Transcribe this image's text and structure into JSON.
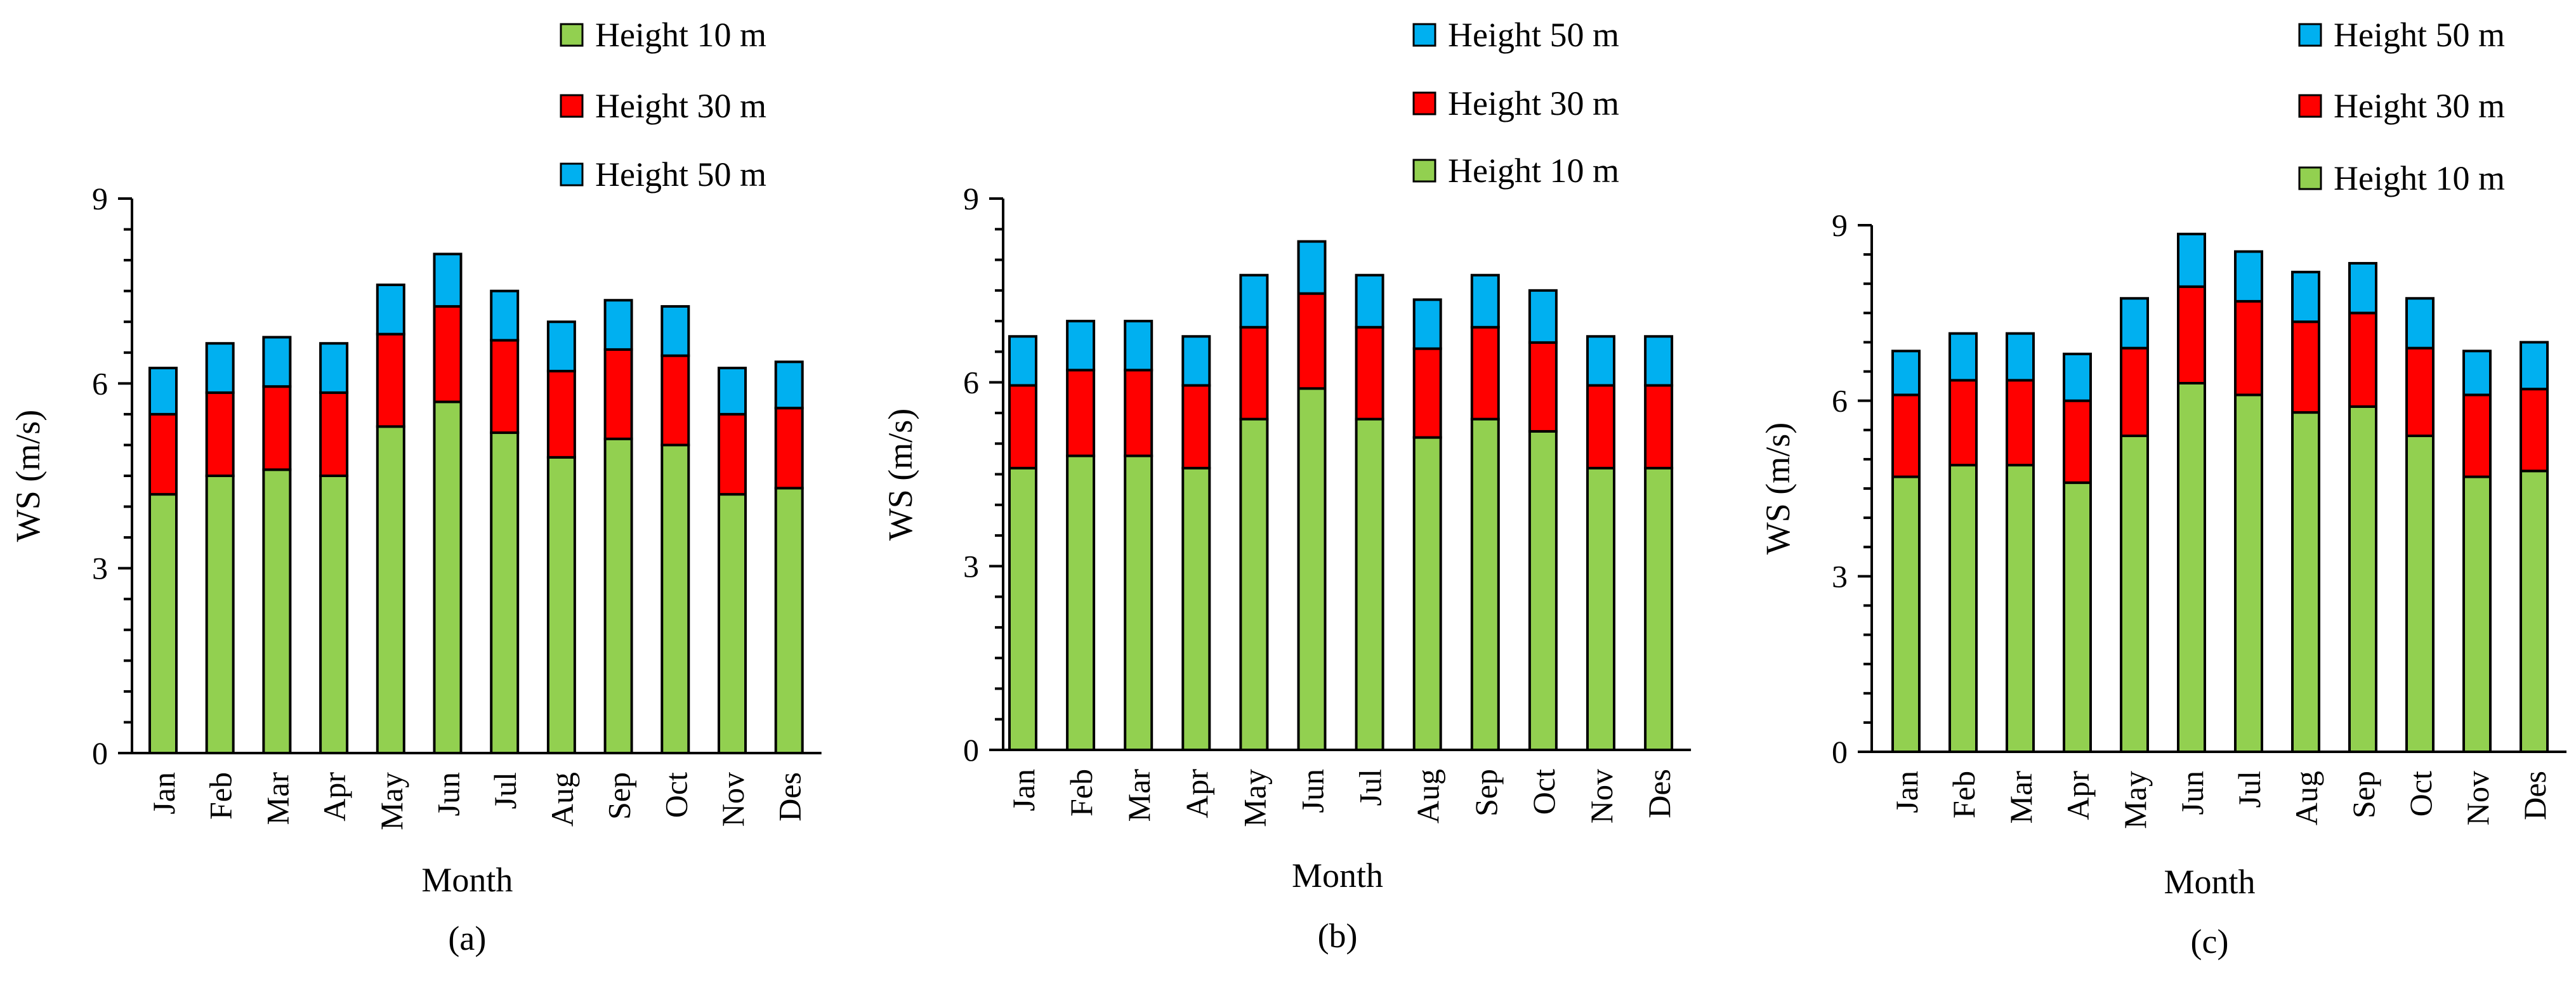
{
  "figure": {
    "legend_series_label": "Height",
    "unit": "m"
  },
  "chart_data": [
    {
      "type": "bar",
      "stacked": true,
      "panel_label": "(a)",
      "xlabel": "Month",
      "ylabel": "WS (m/s)",
      "ylim": [
        0,
        9
      ],
      "yticks": [
        0,
        3,
        6,
        9
      ],
      "categories": [
        "Jan",
        "Feb",
        "Mar",
        "Apr",
        "May",
        "Jun",
        "Jul",
        "Aug",
        "Sep",
        "Oct",
        "Nov",
        "Des"
      ],
      "series": [
        {
          "name": "Height 10 m",
          "color": "#92D050",
          "values": [
            4.2,
            4.5,
            4.6,
            4.5,
            5.3,
            5.7,
            5.2,
            4.8,
            5.1,
            5.0,
            4.2,
            4.3
          ]
        },
        {
          "name": "Height 30 m",
          "color": "#FF0000",
          "values": [
            1.3,
            1.35,
            1.35,
            1.35,
            1.5,
            1.55,
            1.5,
            1.4,
            1.45,
            1.45,
            1.3,
            1.3
          ]
        },
        {
          "name": "Height 50 m",
          "color": "#00B0F0",
          "values": [
            0.75,
            0.8,
            0.8,
            0.8,
            0.8,
            0.85,
            0.8,
            0.8,
            0.8,
            0.8,
            0.75,
            0.75
          ]
        }
      ],
      "legend_order": [
        "Height 10 m",
        "Height 30 m",
        "Height 50 m"
      ],
      "legend_position": "top-right"
    },
    {
      "type": "bar",
      "stacked": true,
      "panel_label": "(b)",
      "xlabel": "Month",
      "ylabel": "WS (m/s)",
      "ylim": [
        0,
        9
      ],
      "yticks": [
        0,
        3,
        6,
        9
      ],
      "categories": [
        "Jan",
        "Feb",
        "Mar",
        "Apr",
        "May",
        "Jun",
        "Jul",
        "Aug",
        "Sep",
        "Oct",
        "Nov",
        "Des"
      ],
      "series": [
        {
          "name": "Height 10 m",
          "color": "#92D050",
          "values": [
            4.6,
            4.8,
            4.8,
            4.6,
            5.4,
            5.9,
            5.4,
            5.1,
            5.4,
            5.2,
            4.6,
            4.6
          ]
        },
        {
          "name": "Height 30 m",
          "color": "#FF0000",
          "values": [
            1.35,
            1.4,
            1.4,
            1.35,
            1.5,
            1.55,
            1.5,
            1.45,
            1.5,
            1.45,
            1.35,
            1.35
          ]
        },
        {
          "name": "Height 50 m",
          "color": "#00B0F0",
          "values": [
            0.8,
            0.8,
            0.8,
            0.8,
            0.85,
            0.85,
            0.85,
            0.8,
            0.85,
            0.85,
            0.8,
            0.8
          ]
        }
      ],
      "legend_order": [
        "Height 50 m",
        "Height 30 m",
        "Height 10 m"
      ],
      "legend_position": "top-right"
    },
    {
      "type": "bar",
      "stacked": true,
      "panel_label": "(c)",
      "xlabel": "Month",
      "ylabel": "WS (m/s)",
      "ylim": [
        0,
        9
      ],
      "yticks": [
        0,
        3,
        6,
        9
      ],
      "categories": [
        "Jan",
        "Feb",
        "Mar",
        "Apr",
        "May",
        "Jun",
        "Jul",
        "Aug",
        "Sep",
        "Oct",
        "Nov",
        "Des"
      ],
      "series": [
        {
          "name": "Height 10 m",
          "color": "#92D050",
          "values": [
            4.7,
            4.9,
            4.9,
            4.6,
            5.4,
            6.3,
            6.1,
            5.8,
            5.9,
            5.4,
            4.7,
            4.8
          ]
        },
        {
          "name": "Height 30 m",
          "color": "#FF0000",
          "values": [
            1.4,
            1.45,
            1.45,
            1.4,
            1.5,
            1.65,
            1.6,
            1.55,
            1.6,
            1.5,
            1.4,
            1.4
          ]
        },
        {
          "name": "Height 50 m",
          "color": "#00B0F0",
          "values": [
            0.75,
            0.8,
            0.8,
            0.8,
            0.85,
            0.9,
            0.85,
            0.85,
            0.85,
            0.85,
            0.75,
            0.8
          ]
        }
      ],
      "legend_order": [
        "Height 50 m",
        "Height 30 m",
        "Height 10 m"
      ],
      "legend_position": "top-right"
    }
  ]
}
